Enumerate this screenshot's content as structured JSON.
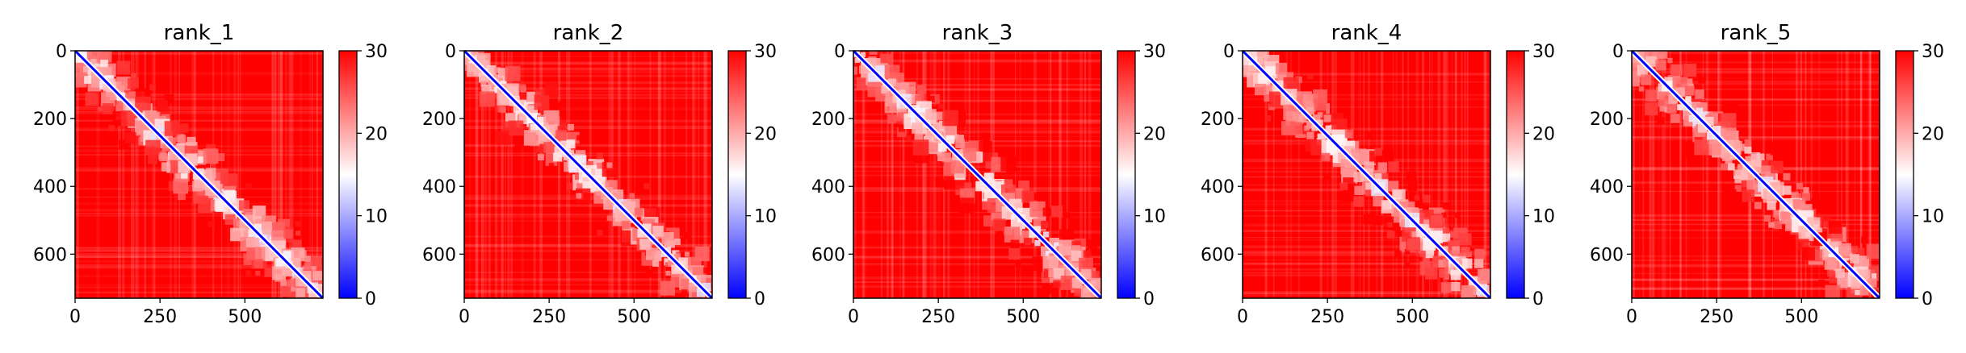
{
  "figure": {
    "colorscale": {
      "low": "#0000ff",
      "mid": "#ffffff",
      "high": "#ff0000"
    }
  },
  "chart_data": [
    {
      "type": "heatmap",
      "title": "rank_1",
      "xlabel": "",
      "ylabel": "",
      "xlim": [
        0,
        730
      ],
      "ylim": [
        730,
        0
      ],
      "x_ticks": [
        0,
        250,
        500
      ],
      "y_ticks": [
        0,
        200,
        400,
        600
      ],
      "colorbar": {
        "range": [
          0,
          30
        ],
        "ticks": [
          0,
          10,
          20,
          30
        ]
      }
    },
    {
      "type": "heatmap",
      "title": "rank_2",
      "xlabel": "",
      "ylabel": "",
      "xlim": [
        0,
        730
      ],
      "ylim": [
        730,
        0
      ],
      "x_ticks": [
        0,
        250,
        500
      ],
      "y_ticks": [
        0,
        200,
        400,
        600
      ],
      "colorbar": {
        "range": [
          0,
          30
        ],
        "ticks": [
          0,
          10,
          20,
          30
        ]
      }
    },
    {
      "type": "heatmap",
      "title": "rank_3",
      "xlabel": "",
      "ylabel": "",
      "xlim": [
        0,
        730
      ],
      "ylim": [
        730,
        0
      ],
      "x_ticks": [
        0,
        250,
        500
      ],
      "y_ticks": [
        0,
        200,
        400,
        600
      ],
      "colorbar": {
        "range": [
          0,
          30
        ],
        "ticks": [
          0,
          10,
          20,
          30
        ]
      }
    },
    {
      "type": "heatmap",
      "title": "rank_4",
      "xlabel": "",
      "ylabel": "",
      "xlim": [
        0,
        730
      ],
      "ylim": [
        730,
        0
      ],
      "x_ticks": [
        0,
        250,
        500
      ],
      "y_ticks": [
        0,
        200,
        400,
        600
      ],
      "colorbar": {
        "range": [
          0,
          30
        ],
        "ticks": [
          0,
          10,
          20,
          30
        ]
      }
    },
    {
      "type": "heatmap",
      "title": "rank_5",
      "xlabel": "",
      "ylabel": "",
      "xlim": [
        0,
        730
      ],
      "ylim": [
        730,
        0
      ],
      "x_ticks": [
        0,
        250,
        500
      ],
      "y_ticks": [
        0,
        200,
        400,
        600
      ],
      "colorbar": {
        "range": [
          0,
          30
        ],
        "ticks": [
          0,
          10,
          20,
          30
        ]
      }
    }
  ]
}
